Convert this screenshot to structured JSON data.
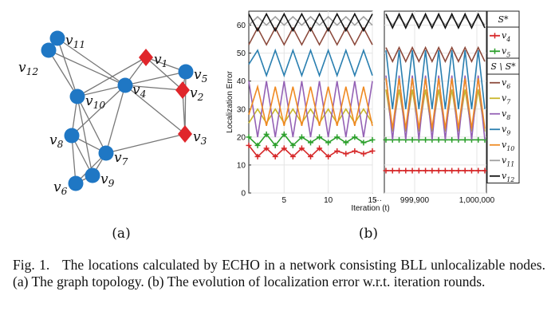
{
  "figure": {
    "subfig_a_label": "(a)",
    "subfig_b_label": "(b)"
  },
  "graph": {
    "nodes": [
      {
        "id": "v11",
        "text": "v",
        "sub": "11",
        "shape": "circle",
        "color": "#1f77c4"
      },
      {
        "id": "v12",
        "text": "v",
        "sub": "12",
        "shape": "circle",
        "color": "#1f77c4"
      },
      {
        "id": "v1",
        "text": "v",
        "sub": "1",
        "shape": "diamond",
        "color": "#e0262b"
      },
      {
        "id": "v5",
        "text": "v",
        "sub": "5",
        "shape": "circle",
        "color": "#1f77c4"
      },
      {
        "id": "v4",
        "text": "v",
        "sub": "4",
        "shape": "circle",
        "color": "#1f77c4"
      },
      {
        "id": "v2",
        "text": "v",
        "sub": "2",
        "shape": "diamond",
        "color": "#e0262b"
      },
      {
        "id": "v10",
        "text": "v",
        "sub": "10",
        "shape": "circle",
        "color": "#1f77c4"
      },
      {
        "id": "v3",
        "text": "v",
        "sub": "3",
        "shape": "diamond",
        "color": "#e0262b"
      },
      {
        "id": "v8",
        "text": "v",
        "sub": "8",
        "shape": "circle",
        "color": "#1f77c4"
      },
      {
        "id": "v7",
        "text": "v",
        "sub": "7",
        "shape": "circle",
        "color": "#1f77c4"
      },
      {
        "id": "v9",
        "text": "v",
        "sub": "9",
        "shape": "circle",
        "color": "#1f77c4"
      },
      {
        "id": "v6",
        "text": "v",
        "sub": "6",
        "shape": "circle",
        "color": "#1f77c4"
      }
    ],
    "edges": [
      [
        "v11",
        "v12"
      ],
      [
        "v11",
        "v10"
      ],
      [
        "v11",
        "v4"
      ],
      [
        "v12",
        "v10"
      ],
      [
        "v12",
        "v4"
      ],
      [
        "v1",
        "v4"
      ],
      [
        "v1",
        "v5"
      ],
      [
        "v1",
        "v2"
      ],
      [
        "v1",
        "v10"
      ],
      [
        "v4",
        "v5"
      ],
      [
        "v4",
        "v2"
      ],
      [
        "v4",
        "v3"
      ],
      [
        "v4",
        "v10"
      ],
      [
        "v4",
        "v8"
      ],
      [
        "v4",
        "v7"
      ],
      [
        "v5",
        "v2"
      ],
      [
        "v2",
        "v3"
      ],
      [
        "v5",
        "v3"
      ],
      [
        "v10",
        "v8"
      ],
      [
        "v10",
        "v7"
      ],
      [
        "v10",
        "v9"
      ],
      [
        "v8",
        "v7"
      ],
      [
        "v8",
        "v9"
      ],
      [
        "v8",
        "v6"
      ],
      [
        "v7",
        "v9"
      ],
      [
        "v7",
        "v6"
      ],
      [
        "v7",
        "v3"
      ],
      [
        "v9",
        "v6"
      ]
    ]
  },
  "chart_data": {
    "type": "line",
    "ylabel": "Localization Error",
    "xlabel": "Iteration (t)",
    "ylim": [
      0,
      65
    ],
    "yticks": [
      "0",
      "10",
      "20",
      "30",
      "40",
      "50",
      "60"
    ],
    "left_panel": {
      "xlim": [
        1,
        15
      ],
      "xticks": [
        "5",
        "10",
        "15"
      ]
    },
    "right_panel": {
      "xticks": [
        "999,900",
        "1,000,000"
      ],
      "ellipsis": "···"
    },
    "grid": true,
    "legend": {
      "groups": [
        {
          "title": "S*",
          "entries": [
            "v4",
            "v5"
          ]
        },
        {
          "title": "S \\ S*",
          "entries": [
            "v6",
            "v7",
            "v8",
            "v9",
            "v10",
            "v11",
            "v12"
          ]
        }
      ],
      "placement": "right"
    },
    "series": [
      {
        "name": "v4",
        "sub": "4",
        "color": "#d62728",
        "marker": "+",
        "values_left": [
          17,
          13,
          16,
          13,
          16,
          13,
          16,
          13,
          16,
          13,
          15,
          14,
          15,
          14,
          15
        ],
        "right": [
          8,
          8
        ]
      },
      {
        "name": "v5",
        "sub": "5",
        "color": "#2ca02c",
        "marker": "+",
        "values_left": [
          20,
          17,
          21,
          17,
          21,
          17,
          20,
          18,
          20,
          18,
          20,
          18,
          20,
          18,
          19
        ],
        "right": [
          19,
          19
        ]
      },
      {
        "name": "v6",
        "sub": "6",
        "color": "#8c4a3c",
        "values_left": [
          53,
          59,
          53,
          59,
          53,
          59,
          53,
          59,
          53,
          59,
          53,
          59,
          53,
          59,
          53
        ],
        "right": [
          52,
          47
        ]
      },
      {
        "name": "v7",
        "sub": "7",
        "color": "#c9b52a",
        "values_left": [
          25,
          30,
          25,
          30,
          25,
          30,
          25,
          30,
          25,
          30,
          25,
          30,
          25,
          30,
          25
        ],
        "right": [
          37,
          22
        ]
      },
      {
        "name": "v8",
        "sub": "8",
        "color": "#9461b5",
        "values_left": [
          40,
          20,
          40,
          20,
          40,
          20,
          40,
          20,
          40,
          20,
          40,
          20,
          40,
          20,
          40
        ],
        "right": [
          42,
          19
        ]
      },
      {
        "name": "v9",
        "sub": "9",
        "color": "#2a7fb0",
        "values_left": [
          46,
          51,
          42,
          51,
          42,
          51,
          42,
          51,
          42,
          51,
          42,
          51,
          42,
          51,
          42
        ],
        "right": [
          51,
          30
        ]
      },
      {
        "name": "v10",
        "sub": "10",
        "color": "#ef8a22",
        "values_left": [
          28,
          38,
          24,
          38,
          24,
          38,
          24,
          38,
          24,
          38,
          24,
          38,
          24,
          38,
          24
        ],
        "right": [
          41,
          23
        ]
      },
      {
        "name": "v11",
        "sub": "11",
        "color": "#a0a0a0",
        "values_left": [
          60,
          63,
          60,
          63,
          60,
          63,
          60,
          63,
          60,
          63,
          60,
          63,
          60,
          63,
          60
        ],
        "right": [
          63,
          60
        ]
      },
      {
        "name": "v12",
        "sub": "12",
        "color": "#111111",
        "values_left": [
          64,
          58,
          64,
          58,
          64,
          58,
          64,
          58,
          64,
          58,
          64,
          58,
          64,
          58,
          64
        ],
        "right": [
          64,
          59
        ]
      }
    ]
  },
  "caption": {
    "label": "Fig. 1.",
    "text": "The locations calculated by ECHO in a network consisting BLL unlocalizable nodes. (a) The graph topology. (b) The evolution of localization error w.r.t. iteration rounds."
  }
}
